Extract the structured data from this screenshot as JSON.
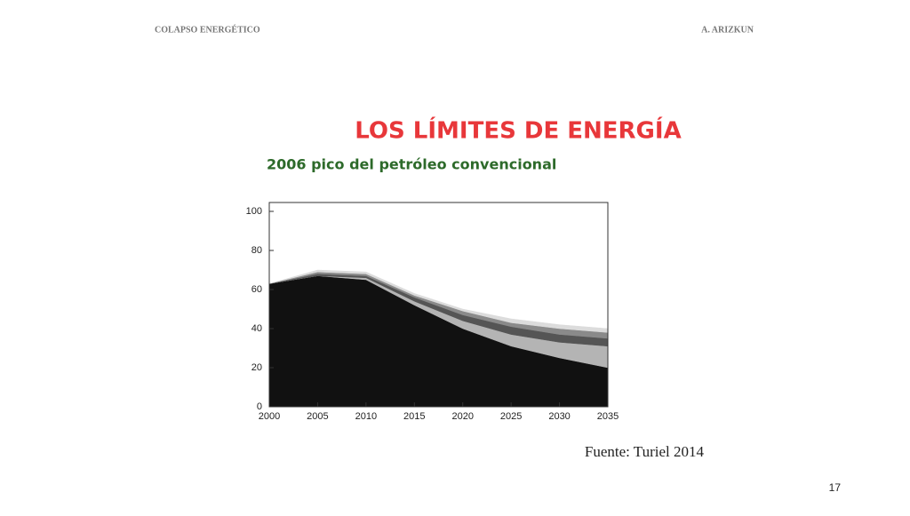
{
  "header": {
    "left": "COLAPSO ENERGÉTICO",
    "right": "A. ARIZKUN"
  },
  "title": "LOS LÍMITES DE ENERGÍA",
  "subtitle": "2006 pico del petróleo convencional",
  "source": "Fuente: Turiel 2014",
  "page_number": "17",
  "chart_data": {
    "type": "area",
    "stacked": true,
    "x": [
      2000,
      2005,
      2010,
      2015,
      2020,
      2025,
      2030,
      2035
    ],
    "xlim": [
      2000,
      2035
    ],
    "xticks": [
      2000,
      2005,
      2010,
      2015,
      2020,
      2025,
      2030,
      2035
    ],
    "ylim": [
      0,
      100
    ],
    "yticks": [
      0,
      20,
      40,
      60,
      80,
      100
    ],
    "series": [
      {
        "color": "#111111",
        "values": [
          63,
          67,
          65,
          52,
          40,
          31,
          25,
          20
        ]
      },
      {
        "color": "#b4b4b4",
        "values": [
          0,
          0,
          1,
          2,
          4,
          6,
          8,
          11
        ]
      },
      {
        "color": "#555555",
        "values": [
          0,
          1,
          1,
          2,
          3,
          4,
          4,
          4
        ]
      },
      {
        "color": "#8a8a8a",
        "values": [
          0,
          1,
          1,
          1,
          2,
          2,
          3,
          3
        ]
      },
      {
        "color": "#dcdcdc",
        "values": [
          0,
          1,
          1,
          1,
          1,
          2,
          2,
          2
        ]
      }
    ]
  }
}
